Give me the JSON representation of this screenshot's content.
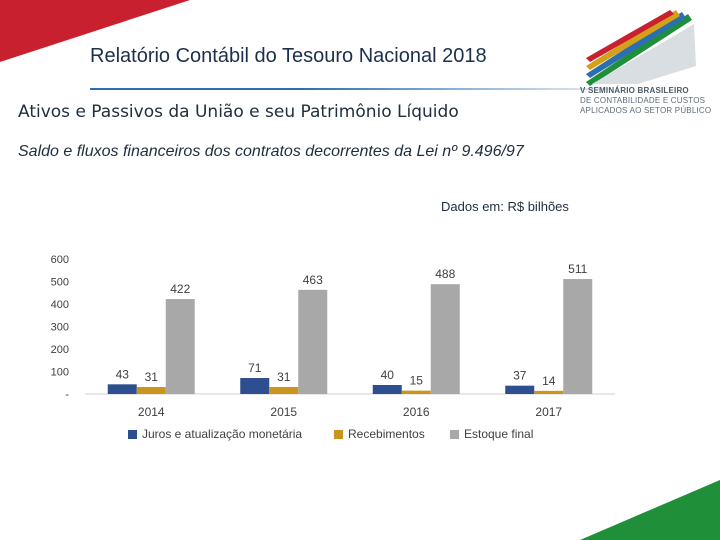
{
  "header": {
    "title_bold": "Relatório Contábil",
    "title_rest": " do Tesouro Nacional 2018"
  },
  "logo": {
    "line1": "V SEMINÁRIO BRASILEIRO",
    "line2": "DE CONTABILIDADE E CUSTOS",
    "line3": "APLICADOS AO SETOR PÚBLICO",
    "icon": "seminar-logo-stripes"
  },
  "section_heading": "Ativos e Passivos da União e seu Patrimônio Líquido",
  "subtitle": "Saldo e fluxos financeiros dos contratos decorrentes da Lei nº 9.496/97",
  "units_note": "Dados em: R$ bilhões",
  "colors": {
    "accent_red": "#c8202f",
    "accent_green": "#1f8f3a",
    "series_blue": "#2e4f8f",
    "series_gold": "#c9951c",
    "series_gray": "#a8a8a8"
  },
  "chart_data": {
    "type": "bar",
    "categories": [
      "2014",
      "2015",
      "2016",
      "2017"
    ],
    "series": [
      {
        "name": "Juros e atualização monetária",
        "values": [
          43,
          71,
          40,
          37
        ],
        "color": "#2e4f8f"
      },
      {
        "name": "Recebimentos",
        "values": [
          31,
          31,
          15,
          14
        ],
        "color": "#c9951c"
      },
      {
        "name": "Estoque final",
        "values": [
          422,
          463,
          488,
          511
        ],
        "color": "#a8a8a8"
      }
    ],
    "y_ticks": [
      "-",
      "100",
      "200",
      "300",
      "400",
      "500",
      "600"
    ],
    "ylim": [
      0,
      600
    ],
    "grid": false,
    "legend_position": "bottom"
  }
}
